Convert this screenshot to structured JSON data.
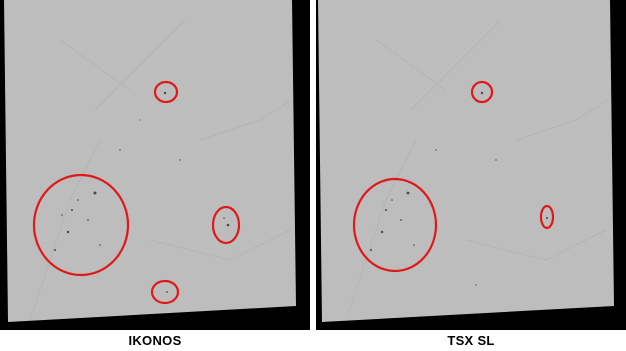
{
  "panels": [
    {
      "caption": "IKONOS",
      "highlight_count": 4
    },
    {
      "caption": "TSX SL",
      "highlight_count": 3
    }
  ],
  "colors": {
    "background": "#ffffff",
    "image_frame": "#000000",
    "image_surface": "#bdbdbd",
    "highlight_circle": "#e01818",
    "speckle": "#4a4a4a"
  }
}
